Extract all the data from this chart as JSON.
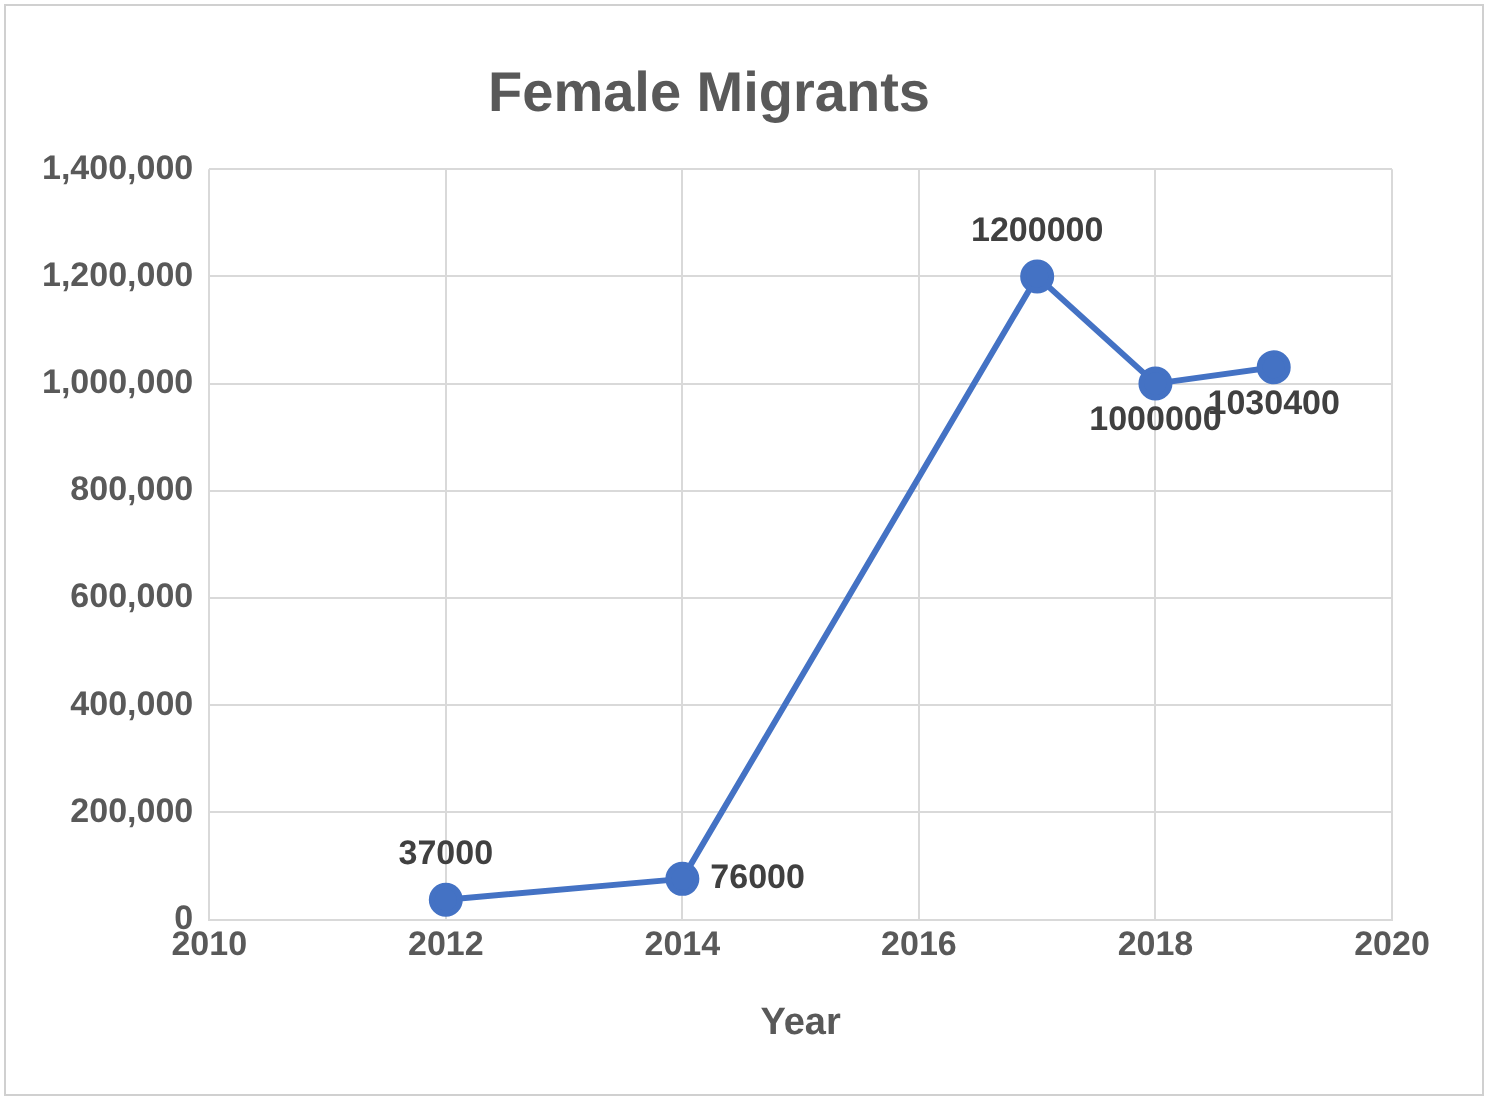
{
  "chart_data": {
    "type": "line",
    "title": "Female Migrants",
    "xlabel": "Year",
    "x": [
      2012,
      2014,
      2017,
      2018,
      2019
    ],
    "series": [
      {
        "color": "#4472c4",
        "values": [
          37000,
          76000,
          1200000,
          1000000,
          1030400
        ]
      }
    ],
    "xlim": [
      2010,
      2020
    ],
    "xticks": [
      2010,
      2012,
      2014,
      2016,
      2018,
      2020
    ],
    "ylim": [
      0,
      1400000
    ],
    "yticks": [
      0,
      {
        "value": 200000,
        "label": "200,000"
      },
      {
        "value": 400000,
        "label": "400,000"
      },
      {
        "value": 600000,
        "label": "600,000"
      },
      {
        "value": 800000,
        "label": "800,000"
      },
      {
        "value": 1000000,
        "label": "1,000,000"
      },
      {
        "value": 1200000,
        "label": "1,200,000"
      },
      {
        "value": 1400000,
        "label": "1,400,000"
      }
    ],
    "grid": true,
    "legend": false,
    "marker": "circle",
    "line_style": "solid",
    "data_labels": true
  }
}
